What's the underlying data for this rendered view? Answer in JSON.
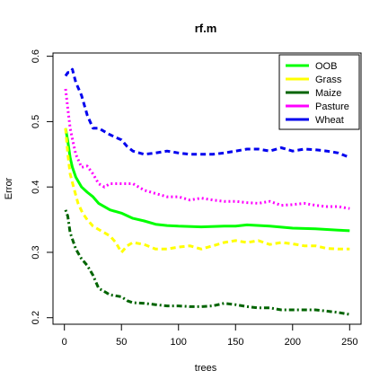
{
  "chart_data": {
    "type": "line",
    "title": "rf.m",
    "xlabel": "trees",
    "ylabel": "Error",
    "xlim": [
      -10,
      260
    ],
    "ylim": [
      0.19,
      0.605
    ],
    "x_ticks": [
      0,
      50,
      100,
      150,
      200,
      250
    ],
    "x_tick_labels": [
      "0",
      "50",
      "100",
      "150",
      "200",
      "250"
    ],
    "y_ticks": [
      0.2,
      0.3,
      0.4,
      0.5,
      0.6
    ],
    "y_tick_labels": [
      "0.2",
      "0.3",
      "0.4",
      "0.5",
      "0.6"
    ],
    "grid": false,
    "legend_position": "top-right",
    "series": [
      {
        "name": "OOB",
        "color": "#00ff00",
        "dash": "solid",
        "points": [
          [
            1,
            0.49
          ],
          [
            3,
            0.47
          ],
          [
            5,
            0.445
          ],
          [
            7,
            0.43
          ],
          [
            10,
            0.415
          ],
          [
            15,
            0.4
          ],
          [
            20,
            0.392
          ],
          [
            25,
            0.385
          ],
          [
            30,
            0.375
          ],
          [
            40,
            0.365
          ],
          [
            50,
            0.36
          ],
          [
            60,
            0.352
          ],
          [
            70,
            0.348
          ],
          [
            80,
            0.343
          ],
          [
            90,
            0.341
          ],
          [
            100,
            0.34
          ],
          [
            120,
            0.339
          ],
          [
            140,
            0.34
          ],
          [
            150,
            0.34
          ],
          [
            160,
            0.342
          ],
          [
            180,
            0.34
          ],
          [
            200,
            0.337
          ],
          [
            220,
            0.336
          ],
          [
            240,
            0.334
          ],
          [
            250,
            0.333
          ]
        ]
      },
      {
        "name": "Grass",
        "color": "#ffff00",
        "dash": "dashed",
        "points": [
          [
            1,
            0.49
          ],
          [
            3,
            0.45
          ],
          [
            5,
            0.42
          ],
          [
            8,
            0.4
          ],
          [
            12,
            0.375
          ],
          [
            16,
            0.36
          ],
          [
            20,
            0.35
          ],
          [
            25,
            0.34
          ],
          [
            30,
            0.335
          ],
          [
            35,
            0.33
          ],
          [
            40,
            0.325
          ],
          [
            45,
            0.315
          ],
          [
            50,
            0.3
          ],
          [
            55,
            0.31
          ],
          [
            60,
            0.315
          ],
          [
            70,
            0.312
          ],
          [
            80,
            0.305
          ],
          [
            90,
            0.305
          ],
          [
            100,
            0.308
          ],
          [
            110,
            0.31
          ],
          [
            120,
            0.305
          ],
          [
            130,
            0.31
          ],
          [
            140,
            0.315
          ],
          [
            150,
            0.318
          ],
          [
            160,
            0.315
          ],
          [
            170,
            0.318
          ],
          [
            180,
            0.312
          ],
          [
            190,
            0.315
          ],
          [
            200,
            0.313
          ],
          [
            210,
            0.31
          ],
          [
            220,
            0.31
          ],
          [
            230,
            0.306
          ],
          [
            240,
            0.305
          ],
          [
            250,
            0.305
          ]
        ]
      },
      {
        "name": "Maize",
        "color": "#006400",
        "dash": "dotdash",
        "points": [
          [
            1,
            0.365
          ],
          [
            3,
            0.355
          ],
          [
            5,
            0.33
          ],
          [
            8,
            0.315
          ],
          [
            10,
            0.305
          ],
          [
            15,
            0.29
          ],
          [
            20,
            0.28
          ],
          [
            25,
            0.265
          ],
          [
            30,
            0.245
          ],
          [
            35,
            0.24
          ],
          [
            40,
            0.235
          ],
          [
            50,
            0.232
          ],
          [
            55,
            0.226
          ],
          [
            60,
            0.223
          ],
          [
            70,
            0.222
          ],
          [
            80,
            0.22
          ],
          [
            90,
            0.218
          ],
          [
            100,
            0.218
          ],
          [
            110,
            0.217
          ],
          [
            120,
            0.217
          ],
          [
            130,
            0.218
          ],
          [
            140,
            0.222
          ],
          [
            150,
            0.22
          ],
          [
            160,
            0.217
          ],
          [
            170,
            0.215
          ],
          [
            180,
            0.215
          ],
          [
            190,
            0.212
          ],
          [
            200,
            0.212
          ],
          [
            210,
            0.212
          ],
          [
            220,
            0.212
          ],
          [
            230,
            0.21
          ],
          [
            240,
            0.208
          ],
          [
            250,
            0.205
          ]
        ]
      },
      {
        "name": "Pasture",
        "color": "#ff00ff",
        "dash": "dotted",
        "points": [
          [
            1,
            0.55
          ],
          [
            3,
            0.52
          ],
          [
            5,
            0.49
          ],
          [
            8,
            0.465
          ],
          [
            10,
            0.45
          ],
          [
            15,
            0.43
          ],
          [
            20,
            0.432
          ],
          [
            25,
            0.42
          ],
          [
            30,
            0.405
          ],
          [
            35,
            0.4
          ],
          [
            40,
            0.405
          ],
          [
            50,
            0.405
          ],
          [
            55,
            0.405
          ],
          [
            60,
            0.405
          ],
          [
            70,
            0.395
          ],
          [
            80,
            0.39
          ],
          [
            90,
            0.385
          ],
          [
            100,
            0.385
          ],
          [
            110,
            0.38
          ],
          [
            120,
            0.383
          ],
          [
            130,
            0.38
          ],
          [
            140,
            0.378
          ],
          [
            150,
            0.378
          ],
          [
            160,
            0.376
          ],
          [
            170,
            0.375
          ],
          [
            180,
            0.378
          ],
          [
            190,
            0.372
          ],
          [
            200,
            0.373
          ],
          [
            210,
            0.375
          ],
          [
            220,
            0.372
          ],
          [
            230,
            0.37
          ],
          [
            240,
            0.37
          ],
          [
            250,
            0.367
          ]
        ]
      },
      {
        "name": "Wheat",
        "color": "#0000ee",
        "dash": "dashed",
        "points": [
          [
            1,
            0.57
          ],
          [
            3,
            0.575
          ],
          [
            5,
            0.575
          ],
          [
            7,
            0.58
          ],
          [
            10,
            0.56
          ],
          [
            15,
            0.54
          ],
          [
            20,
            0.51
          ],
          [
            25,
            0.49
          ],
          [
            30,
            0.49
          ],
          [
            40,
            0.48
          ],
          [
            50,
            0.472
          ],
          [
            55,
            0.462
          ],
          [
            60,
            0.455
          ],
          [
            70,
            0.45
          ],
          [
            80,
            0.452
          ],
          [
            90,
            0.455
          ],
          [
            100,
            0.452
          ],
          [
            110,
            0.45
          ],
          [
            120,
            0.45
          ],
          [
            130,
            0.45
          ],
          [
            140,
            0.452
          ],
          [
            150,
            0.455
          ],
          [
            160,
            0.458
          ],
          [
            170,
            0.458
          ],
          [
            180,
            0.455
          ],
          [
            190,
            0.46
          ],
          [
            200,
            0.455
          ],
          [
            210,
            0.458
          ],
          [
            220,
            0.457
          ],
          [
            230,
            0.455
          ],
          [
            240,
            0.452
          ],
          [
            250,
            0.445
          ]
        ]
      }
    ]
  }
}
